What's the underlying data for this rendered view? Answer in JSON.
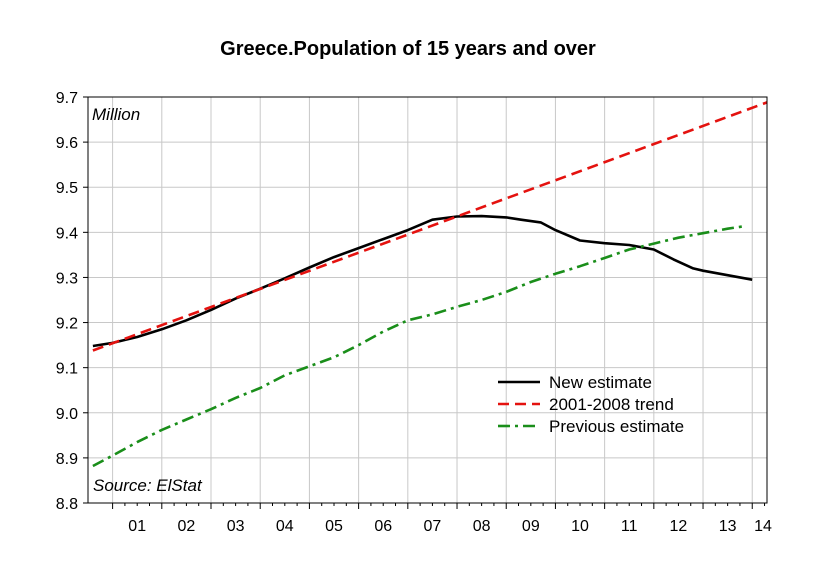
{
  "chart_data": {
    "type": "line",
    "title": "Greece.Population of 15 years and over",
    "unit_label": "Million",
    "source_label": "Source: ElStat",
    "x_tick_labels": [
      "01",
      "02",
      "03",
      "04",
      "05",
      "06",
      "07",
      "08",
      "09",
      "10",
      "11",
      "12",
      "13",
      "14"
    ],
    "xlim": [
      2000.5,
      2014.3
    ],
    "ylim": [
      8.8,
      9.7
    ],
    "y_ticks": [
      8.8,
      8.9,
      9.0,
      9.1,
      9.2,
      9.3,
      9.4,
      9.5,
      9.6,
      9.7
    ],
    "grid": true,
    "legend_position": "bottom-right",
    "series": [
      {
        "name": "New estimate",
        "color": "#000000",
        "style": "solid",
        "x": [
          2000.6,
          2001.0,
          2001.5,
          2002.0,
          2002.5,
          2003.0,
          2003.5,
          2004.0,
          2004.5,
          2005.0,
          2005.5,
          2006.0,
          2006.5,
          2007.0,
          2007.5,
          2008.0,
          2008.5,
          2009.0,
          2009.3,
          2009.7,
          2010.0,
          2010.5,
          2011.0,
          2011.5,
          2012.0,
          2012.4,
          2012.8,
          2013.0,
          2013.5,
          2014.0
        ],
        "y": [
          9.148,
          9.155,
          9.168,
          9.185,
          9.205,
          9.228,
          9.253,
          9.275,
          9.298,
          9.322,
          9.345,
          9.365,
          9.385,
          9.405,
          9.428,
          9.435,
          9.436,
          9.433,
          9.428,
          9.422,
          9.405,
          9.382,
          9.376,
          9.372,
          9.362,
          9.34,
          9.32,
          9.315,
          9.305,
          9.295
        ]
      },
      {
        "name": "2001-2008 trend",
        "color": "#e4120f",
        "style": "dashed",
        "x": [
          2000.6,
          2014.3
        ],
        "y": [
          9.138,
          9.688
        ]
      },
      {
        "name": "Previous estimate",
        "color": "#1a8e1a",
        "style": "dashdot",
        "x": [
          2000.6,
          2001.0,
          2001.5,
          2002.0,
          2002.5,
          2003.0,
          2003.5,
          2004.0,
          2004.5,
          2005.0,
          2005.5,
          2006.0,
          2006.5,
          2007.0,
          2007.5,
          2008.0,
          2008.5,
          2009.0,
          2009.5,
          2010.0,
          2010.5,
          2011.0,
          2011.5,
          2012.0,
          2012.5,
          2013.0,
          2013.5,
          2013.8
        ],
        "y": [
          8.882,
          8.905,
          8.935,
          8.962,
          8.985,
          9.008,
          9.033,
          9.055,
          9.083,
          9.103,
          9.123,
          9.15,
          9.18,
          9.205,
          9.218,
          9.235,
          9.25,
          9.268,
          9.29,
          9.308,
          9.325,
          9.343,
          9.362,
          9.375,
          9.388,
          9.398,
          9.408,
          9.413
        ]
      }
    ]
  }
}
